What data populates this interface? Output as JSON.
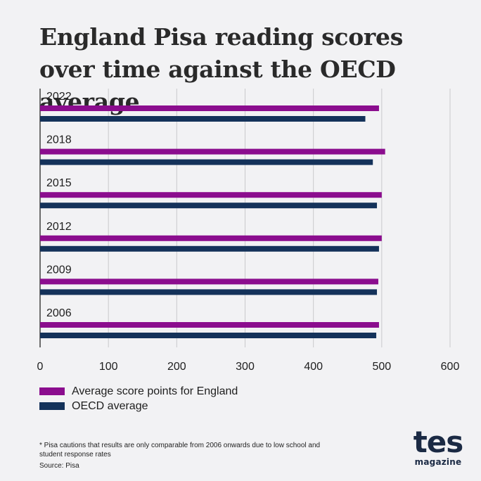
{
  "title": "England Pisa reading scores over time against the OECD average",
  "chart_data": {
    "type": "bar",
    "orientation": "horizontal",
    "categories": [
      "2022",
      "2018",
      "2015",
      "2012",
      "2009",
      "2006"
    ],
    "series": [
      {
        "name": "Average score points for England",
        "color": "#8b0d8e",
        "values": [
          496,
          505,
          500,
          500,
          495,
          496
        ]
      },
      {
        "name": "OECD average",
        "color": "#14325a",
        "values": [
          476,
          487,
          493,
          496,
          493,
          492
        ]
      }
    ],
    "xlim": [
      0,
      600
    ],
    "xticks": [
      0,
      100,
      200,
      300,
      400,
      500,
      600
    ],
    "grid": true,
    "legend_position": "bottom-left"
  },
  "legend": {
    "england": "Average score points for England",
    "oecd": "OECD average"
  },
  "footnote": "* Pisa cautions that results are only comparable from 2006 onwards due to low school and student response rates",
  "source": "Source: Pisa",
  "brand": {
    "main": "tes",
    "sub": "magazine"
  }
}
